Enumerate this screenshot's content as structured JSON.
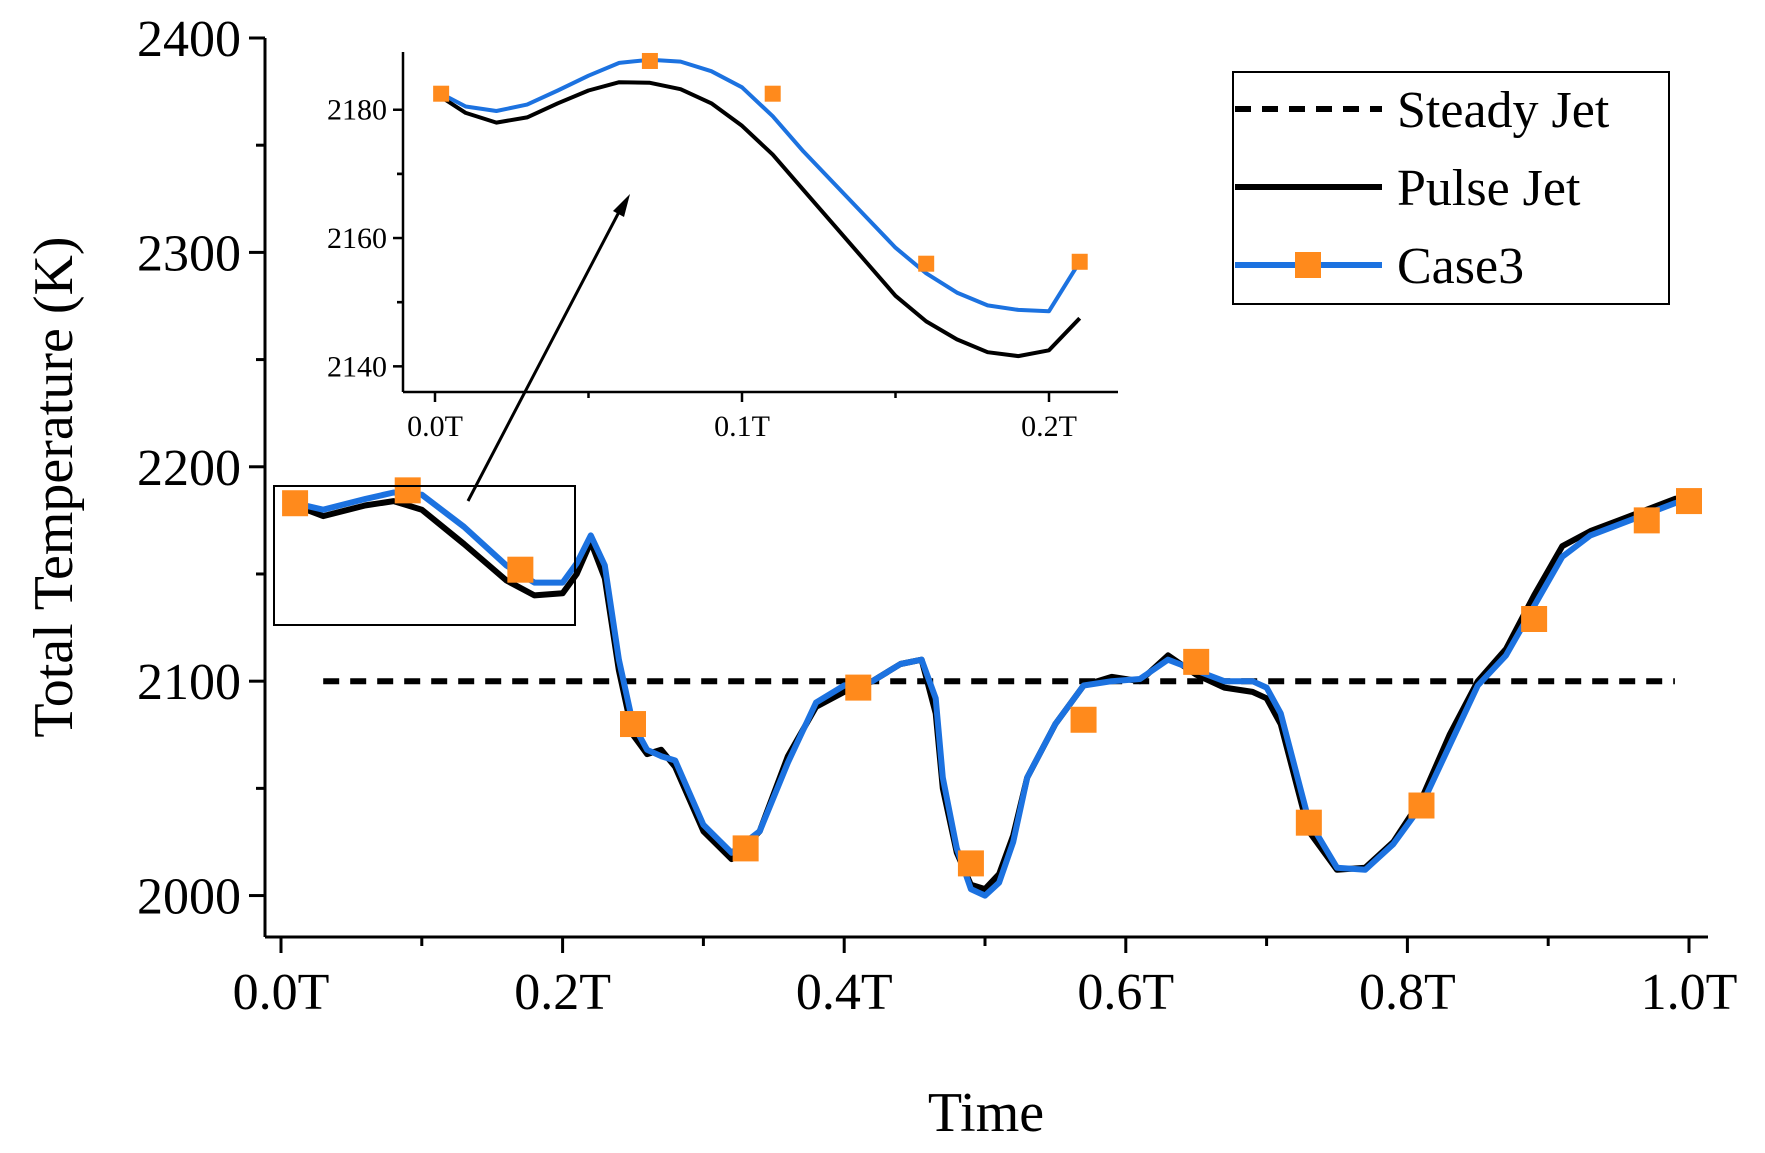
{
  "chart_data": {
    "type": "line",
    "xlabel": "Time",
    "ylabel": "Total Temperature (K)",
    "xlim": [
      0.0,
      1.0
    ],
    "ylim": [
      1990,
      2400
    ],
    "x_ticks": [
      0.0,
      0.2,
      0.4,
      0.6,
      0.8,
      1.0
    ],
    "x_tick_labels": [
      "0.0T",
      "0.2T",
      "0.4T",
      "0.6T",
      "0.8T",
      "1.0T"
    ],
    "y_ticks": [
      2000,
      2100,
      2200,
      2300,
      2400
    ],
    "y_tick_labels": [
      "2000",
      "2100",
      "2200",
      "2300",
      "2400"
    ],
    "legend": {
      "placement": "top-right",
      "entries": [
        "Steady Jet",
        "Pulse Jet",
        "Case3"
      ]
    },
    "series": [
      {
        "name": "Steady Jet",
        "style": "dashed",
        "color": "#000000",
        "x": [
          0.03,
          0.99
        ],
        "y": [
          2100,
          2100
        ]
      },
      {
        "name": "Pulse Jet",
        "style": "solid",
        "color": "#000000",
        "x": [
          0.01,
          0.03,
          0.06,
          0.08,
          0.1,
          0.13,
          0.16,
          0.18,
          0.2,
          0.21,
          0.22,
          0.23,
          0.24,
          0.25,
          0.26,
          0.27,
          0.28,
          0.29,
          0.3,
          0.32,
          0.34,
          0.36,
          0.38,
          0.4,
          0.42,
          0.44,
          0.455,
          0.465,
          0.47,
          0.48,
          0.49,
          0.5,
          0.51,
          0.52,
          0.53,
          0.55,
          0.57,
          0.59,
          0.61,
          0.63,
          0.65,
          0.67,
          0.69,
          0.7,
          0.71,
          0.73,
          0.75,
          0.77,
          0.79,
          0.81,
          0.83,
          0.85,
          0.87,
          0.89,
          0.91,
          0.93,
          0.95,
          0.97,
          0.99,
          1.0
        ],
        "y": [
          2182,
          2177,
          2182,
          2184,
          2180,
          2164,
          2147,
          2140,
          2141,
          2150,
          2165,
          2148,
          2105,
          2075,
          2066,
          2068,
          2060,
          2045,
          2030,
          2017,
          2030,
          2065,
          2088,
          2095,
          2100,
          2108,
          2110,
          2085,
          2050,
          2020,
          2005,
          2003,
          2010,
          2028,
          2055,
          2080,
          2098,
          2102,
          2100,
          2112,
          2103,
          2097,
          2095,
          2092,
          2080,
          2030,
          2012,
          2013,
          2025,
          2045,
          2075,
          2100,
          2115,
          2140,
          2163,
          2170,
          2175,
          2180,
          2185,
          2186
        ]
      },
      {
        "name": "Case3",
        "style": "solid-with-markers",
        "color": "#1c72e0",
        "marker_color": "#ff8a1c",
        "x": [
          0.01,
          0.03,
          0.06,
          0.08,
          0.1,
          0.13,
          0.16,
          0.18,
          0.2,
          0.21,
          0.22,
          0.23,
          0.24,
          0.25,
          0.26,
          0.27,
          0.28,
          0.29,
          0.3,
          0.32,
          0.34,
          0.36,
          0.38,
          0.4,
          0.42,
          0.44,
          0.455,
          0.465,
          0.47,
          0.48,
          0.49,
          0.5,
          0.51,
          0.52,
          0.53,
          0.55,
          0.57,
          0.59,
          0.61,
          0.63,
          0.65,
          0.67,
          0.69,
          0.7,
          0.71,
          0.73,
          0.75,
          0.77,
          0.79,
          0.81,
          0.83,
          0.85,
          0.87,
          0.89,
          0.91,
          0.93,
          0.95,
          0.97,
          0.99,
          1.0
        ],
        "y": [
          2183,
          2180,
          2185,
          2188,
          2187,
          2172,
          2154,
          2146,
          2146,
          2155,
          2168,
          2154,
          2110,
          2080,
          2068,
          2065,
          2063,
          2048,
          2033,
          2020,
          2030,
          2062,
          2090,
          2098,
          2100,
          2108,
          2110,
          2092,
          2055,
          2022,
          2003,
          2000,
          2006,
          2025,
          2055,
          2080,
          2098,
          2100,
          2101,
          2110,
          2105,
          2100,
          2100,
          2097,
          2085,
          2035,
          2013,
          2012,
          2024,
          2042,
          2070,
          2098,
          2112,
          2135,
          2158,
          2168,
          2173,
          2178,
          2183,
          2185
        ],
        "markers_x": [
          0.01,
          0.09,
          0.17,
          0.25,
          0.33,
          0.41,
          0.49,
          0.57,
          0.65,
          0.73,
          0.81,
          0.89,
          0.97,
          1.0
        ],
        "markers_y": [
          2183,
          2189,
          2152,
          2080,
          2022,
          2097,
          2015,
          2082,
          2109,
          2034,
          2042,
          2129,
          2175,
          2184
        ]
      }
    ],
    "inset": {
      "description": "zoom of 0.0T-0.2T",
      "xlim": [
        0.0,
        0.22
      ],
      "ylim": [
        2136,
        2189
      ],
      "x_ticks": [
        0.0,
        0.1,
        0.2
      ],
      "x_tick_labels": [
        "0.0T",
        "0.1T",
        "0.2T"
      ],
      "y_ticks": [
        2140,
        2160,
        2180
      ],
      "y_tick_labels": [
        "2140",
        "2160",
        "2180"
      ],
      "series": [
        {
          "name": "Pulse Jet",
          "x": [
            0.002,
            0.01,
            0.02,
            0.03,
            0.04,
            0.05,
            0.06,
            0.07,
            0.08,
            0.09,
            0.1,
            0.11,
            0.12,
            0.13,
            0.14,
            0.15,
            0.16,
            0.17,
            0.18,
            0.19,
            0.2,
            0.21
          ],
          "y": [
            2182,
            2179.5,
            2178,
            2178.8,
            2181,
            2183,
            2184.3,
            2184.2,
            2183.2,
            2181,
            2177.5,
            2173,
            2167.5,
            2162,
            2156.5,
            2151,
            2147,
            2144.2,
            2142.2,
            2141.6,
            2142.5,
            2147.5
          ]
        },
        {
          "name": "Case3",
          "x": [
            0.002,
            0.01,
            0.02,
            0.03,
            0.04,
            0.05,
            0.06,
            0.07,
            0.08,
            0.09,
            0.1,
            0.11,
            0.12,
            0.13,
            0.14,
            0.15,
            0.16,
            0.17,
            0.18,
            0.19,
            0.2,
            0.21
          ],
          "y": [
            2182.5,
            2180.5,
            2179.8,
            2180.8,
            2183,
            2185.3,
            2187.3,
            2187.8,
            2187.5,
            2186,
            2183.5,
            2179,
            2173.5,
            2168.5,
            2163.5,
            2158.5,
            2154.5,
            2151.5,
            2149.5,
            2148.8,
            2148.6,
            2156.3
          ],
          "markers_x": [
            0.002,
            0.07,
            0.11,
            0.16,
            0.21
          ],
          "markers_y": [
            2182.5,
            2187.6,
            2182.5,
            2156,
            2156.3
          ]
        }
      ]
    },
    "zoom_box": {
      "x_range": [
        0.0,
        0.21
      ],
      "y_range": [
        2133,
        2197
      ]
    }
  }
}
